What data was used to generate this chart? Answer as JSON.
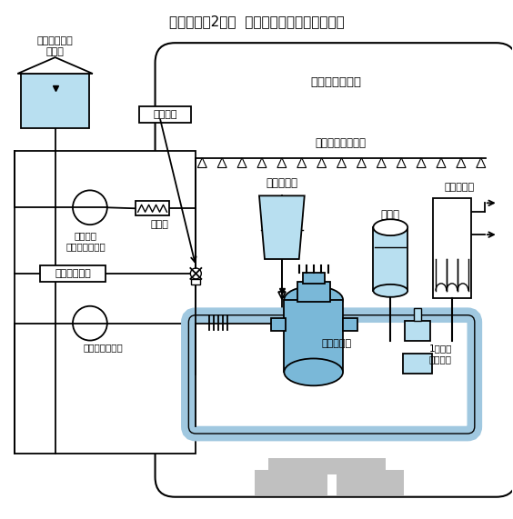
{
  "title": "伊方発電所2号機  安全注入系配管概略系統図",
  "light_blue": "#b8dff0",
  "blue_pipe": "#7ab8d8",
  "blue_pipe2": "#a0c8e0",
  "dark_line": "#000000",
  "gray_fill": "#c0c0c0",
  "label_touji": "当該箇所",
  "label_reikya": "冷却器",
  "label_kakuyo": "格納容器\nスプレイポンプ",
  "label_nenryo": "燃料取替用水\nタンク",
  "label_testline": "テストライン",
  "label_koatsu": "高圧注入ポンプ",
  "label_chukuyo": "蓄圧タンク",
  "label_reactor_vessel": "原子炉容器",
  "label_containment": "原子炉格納容器",
  "label_spray": "格納容器スプレイ",
  "label_pressurizer": "加圧器",
  "label_steam_gen": "蒸気発生器",
  "label_coolant_pump": "1次冷却\n材ポンプ"
}
